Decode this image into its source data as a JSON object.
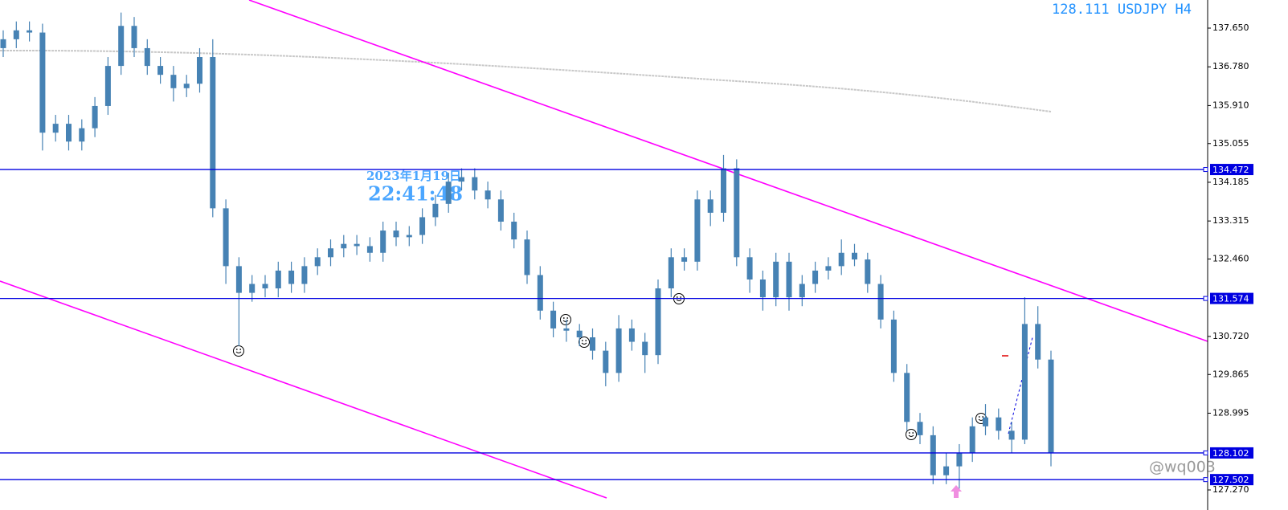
{
  "chart_data": {
    "type": "candlestick",
    "title": "128.111 USDJPY H4",
    "timestamp_date": "2023年1月19日",
    "timestamp_time": "22:41:48",
    "watermark": "@wq003",
    "color": "#4682b4",
    "level_color": "#0000e0",
    "ylim": [
      126.819,
      138.282
    ],
    "yticks": [
      {
        "value": 137.65,
        "label": "137.650"
      },
      {
        "value": 136.78,
        "label": "136.780"
      },
      {
        "value": 135.91,
        "label": "135.910"
      },
      135.055,
      134.185,
      133.315,
      {
        "value": 132.46,
        "label": "132.460"
      },
      {
        "value": 130.72,
        "label": "130.720"
      },
      129.865,
      128.995,
      {
        "value": 127.27,
        "label": "127.270"
      }
    ],
    "levels": [
      134.472,
      131.574,
      128.102,
      127.502
    ],
    "open": [
      137.2,
      137.4,
      137.6,
      137.55,
      135.3,
      135.5,
      135.1,
      135.4,
      135.9,
      136.8,
      137.7,
      137.2,
      136.8,
      136.6,
      136.3,
      136.4,
      137.0,
      133.6,
      132.3,
      131.7,
      131.9,
      131.8,
      132.2,
      131.9,
      132.3,
      132.5,
      132.7,
      132.8,
      132.75,
      132.6,
      133.1,
      132.95,
      133.0,
      133.4,
      133.7,
      134.2,
      134.3,
      134.0,
      133.8,
      133.3,
      132.9,
      132.1,
      131.3,
      130.9,
      130.85,
      130.7,
      130.4,
      129.9,
      130.9,
      130.6,
      130.3,
      131.8,
      132.5,
      132.4,
      133.8,
      133.5,
      134.5,
      132.5,
      132.0,
      131.6,
      132.4,
      131.6,
      131.9,
      132.2,
      132.3,
      132.6,
      132.45,
      131.9,
      131.1,
      129.9,
      128.8,
      128.5,
      127.6,
      127.8,
      128.1,
      128.7,
      128.9,
      128.6,
      128.4,
      131.0,
      130.2
    ],
    "high": [
      137.6,
      137.8,
      137.8,
      137.75,
      135.7,
      135.7,
      135.6,
      136.1,
      137.0,
      138.0,
      137.9,
      137.4,
      137.0,
      136.8,
      136.6,
      137.2,
      137.4,
      133.8,
      132.5,
      132.1,
      132.1,
      132.4,
      132.4,
      132.5,
      132.7,
      132.9,
      133.0,
      133.0,
      132.95,
      133.3,
      133.3,
      133.2,
      133.6,
      133.9,
      134.4,
      134.5,
      134.5,
      134.2,
      134.0,
      133.5,
      133.1,
      132.3,
      131.5,
      131.1,
      131.0,
      130.9,
      130.6,
      131.2,
      131.1,
      130.8,
      132.0,
      132.7,
      132.7,
      134.0,
      134.0,
      134.8,
      134.7,
      132.7,
      132.2,
      132.6,
      132.6,
      132.1,
      132.4,
      132.5,
      132.9,
      132.8,
      132.6,
      132.1,
      131.3,
      130.1,
      129.0,
      128.7,
      128.1,
      128.3,
      128.9,
      129.2,
      129.1,
      128.8,
      131.6,
      131.4,
      130.4
    ],
    "low": [
      137.0,
      137.2,
      137.35,
      134.9,
      135.1,
      134.9,
      134.9,
      135.2,
      135.7,
      136.6,
      137.0,
      136.6,
      136.4,
      136.0,
      136.1,
      136.2,
      133.4,
      131.9,
      130.5,
      131.5,
      131.6,
      131.6,
      131.7,
      131.7,
      132.1,
      132.3,
      132.5,
      132.55,
      132.4,
      132.4,
      132.75,
      132.75,
      132.8,
      133.2,
      133.5,
      134.0,
      133.8,
      133.6,
      133.1,
      132.7,
      131.9,
      131.1,
      130.7,
      130.6,
      130.5,
      130.2,
      129.6,
      129.7,
      130.4,
      129.9,
      130.1,
      131.6,
      132.2,
      132.2,
      133.2,
      133.3,
      132.3,
      131.7,
      131.3,
      131.4,
      131.3,
      131.4,
      131.7,
      132.0,
      132.1,
      132.3,
      131.7,
      130.9,
      129.7,
      128.6,
      128.3,
      127.4,
      127.4,
      127.3,
      127.9,
      128.5,
      128.4,
      128.1,
      128.3,
      130.0,
      127.8
    ],
    "close": [
      137.4,
      137.6,
      137.55,
      135.3,
      135.5,
      135.1,
      135.4,
      135.9,
      136.8,
      137.7,
      137.2,
      136.8,
      136.6,
      136.3,
      136.4,
      137.0,
      133.6,
      132.3,
      131.7,
      131.9,
      131.8,
      132.2,
      131.9,
      132.3,
      132.5,
      132.7,
      132.8,
      132.75,
      132.6,
      133.1,
      132.95,
      133.0,
      133.4,
      133.7,
      134.2,
      134.3,
      134.0,
      133.8,
      133.3,
      132.9,
      132.1,
      131.3,
      130.9,
      130.85,
      130.7,
      130.4,
      129.9,
      130.9,
      130.6,
      130.3,
      131.8,
      132.5,
      132.4,
      133.8,
      133.5,
      134.5,
      132.5,
      132.0,
      131.6,
      132.4,
      131.6,
      131.9,
      132.2,
      132.3,
      132.6,
      132.45,
      131.9,
      131.1,
      129.9,
      128.8,
      128.5,
      127.6,
      127.8,
      128.1,
      128.7,
      128.9,
      128.6,
      128.4,
      131.0,
      130.2,
      128.111
    ]
  }
}
